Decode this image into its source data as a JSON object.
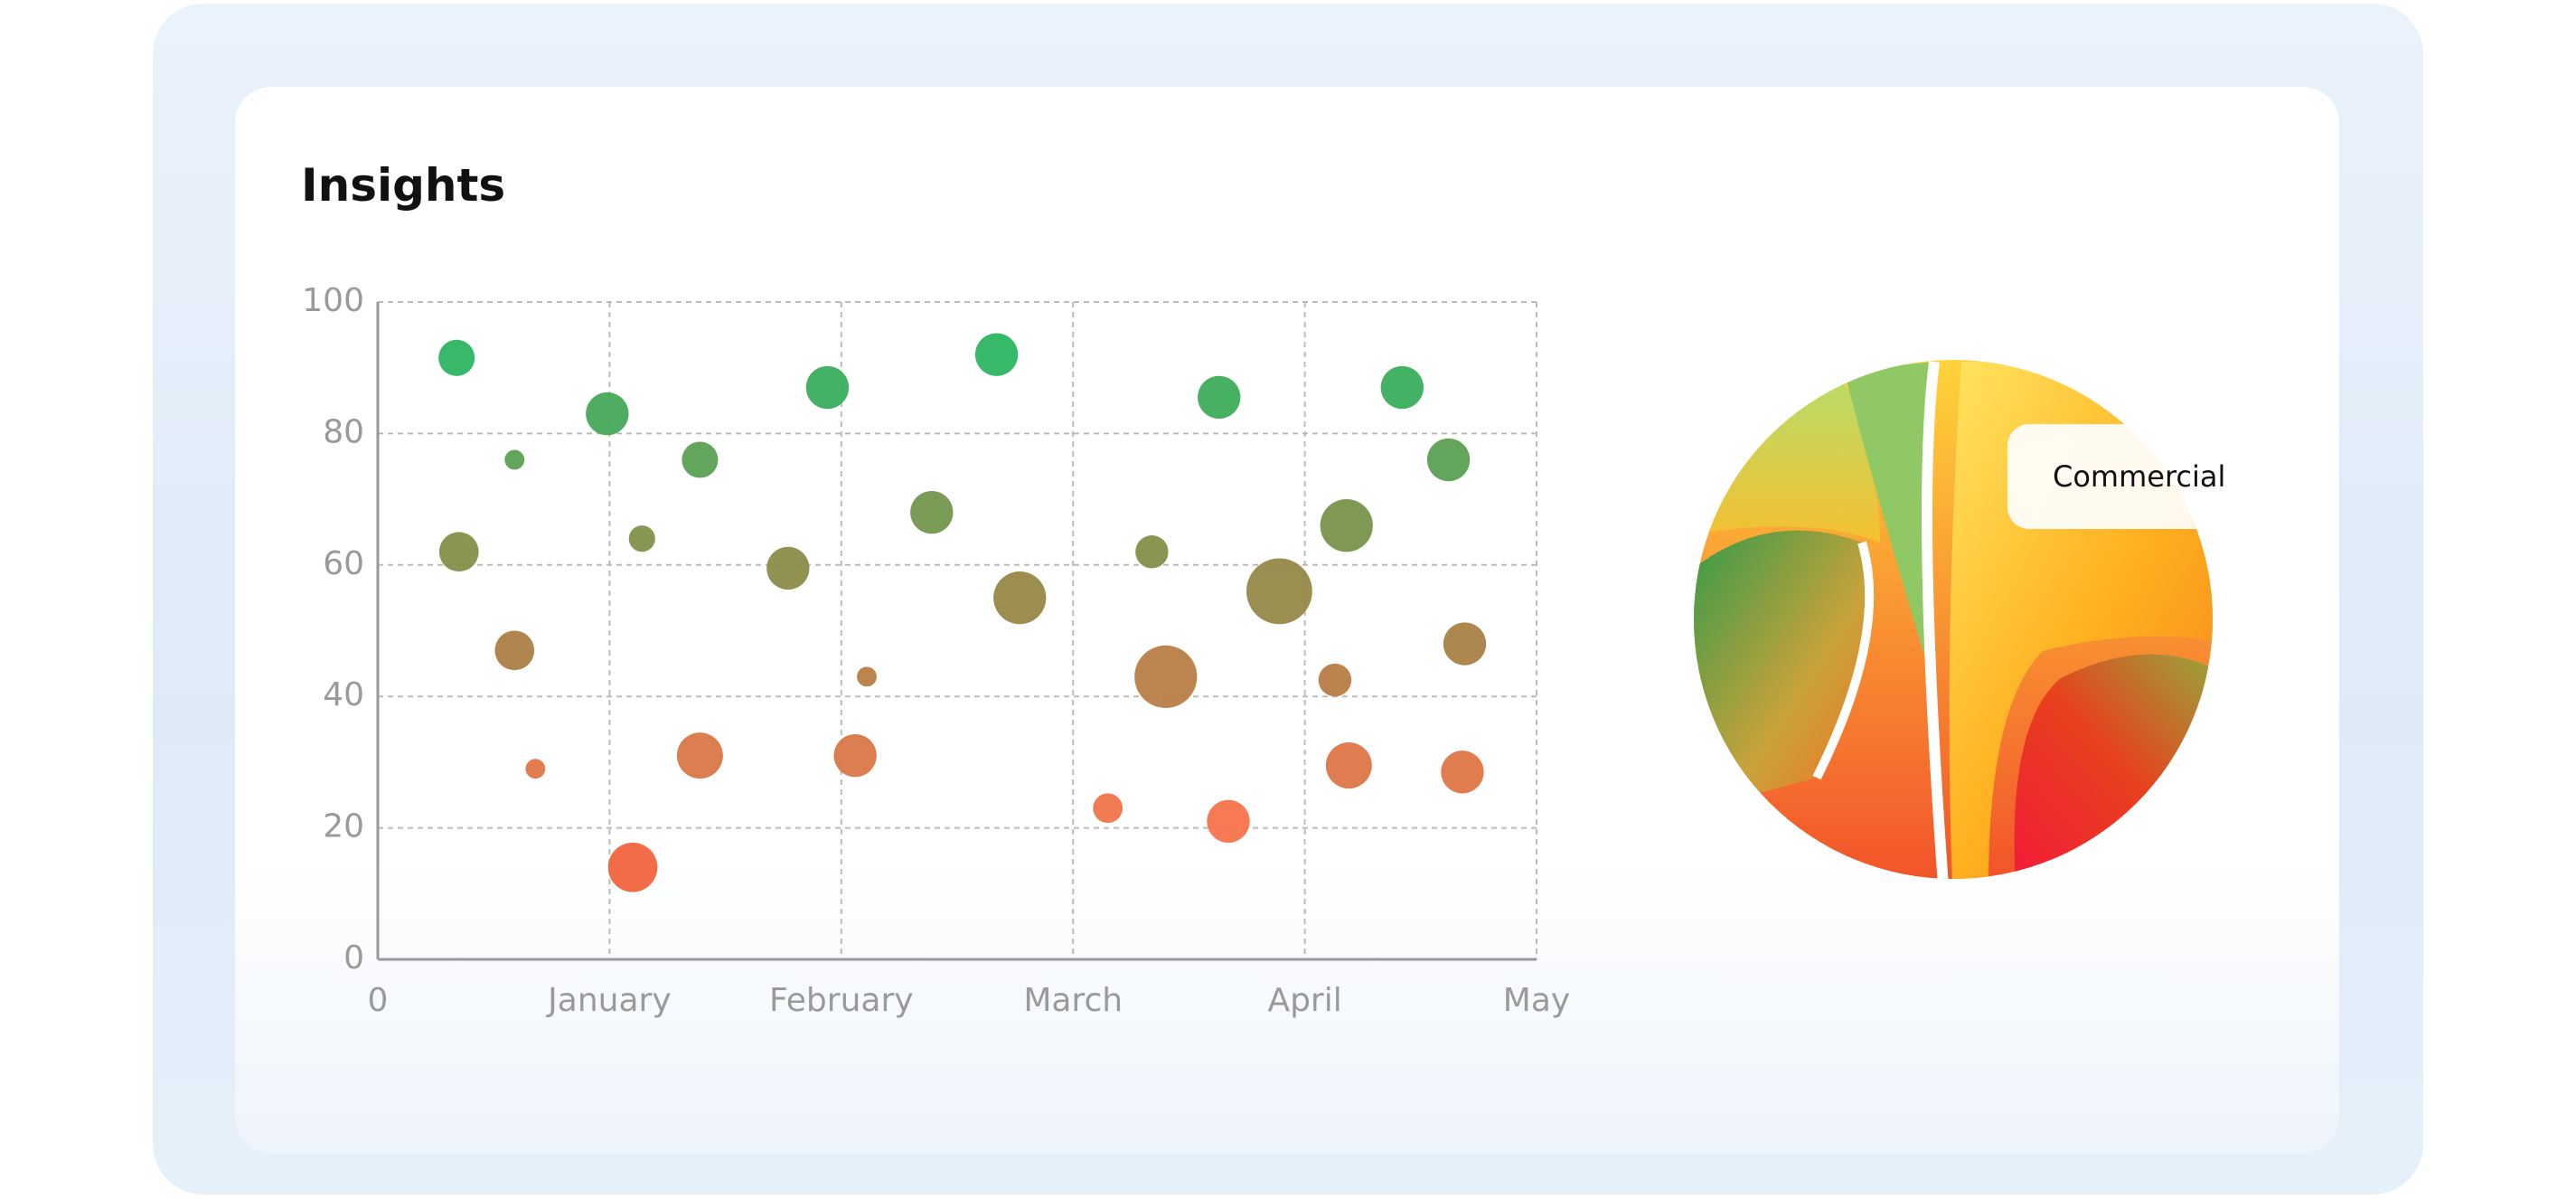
{
  "header": {
    "title": "Insights"
  },
  "chart_data": {
    "type": "bubble",
    "x": [
      0.34,
      0.59,
      0.35,
      0.59,
      0.68,
      0.99,
      1.14,
      1.1,
      1.39,
      1.39,
      1.77,
      1.94,
      2.11,
      2.06,
      2.39,
      2.67,
      2.77,
      3.15,
      3.34,
      3.4,
      3.63,
      3.67,
      3.89,
      4.13,
      4.18,
      4.19,
      4.42,
      4.62,
      4.69,
      4.68
    ],
    "values": [
      91.5,
      76,
      62,
      47,
      29,
      83,
      64,
      14,
      76,
      31,
      59.5,
      87,
      43,
      31,
      68,
      92,
      55,
      23,
      62,
      43,
      85.5,
      21,
      56,
      42.5,
      66,
      29.5,
      87,
      76,
      48,
      28.5
    ],
    "sizes": [
      11,
      6,
      12,
      12,
      6,
      13,
      8,
      15,
      11,
      14,
      13,
      13,
      6,
      13,
      13,
      13,
      16,
      9,
      10,
      19,
      13,
      13,
      20,
      10,
      16,
      14,
      13,
      13,
      13,
      13
    ],
    "color_scale": [
      "#e2401f",
      "#f8734a",
      "#c07a44",
      "#8a8c48",
      "#4ea554",
      "#15c06c"
    ],
    "xlim": [
      0,
      5
    ],
    "xticks": [
      0,
      {
        "value": 1,
        "label": "January"
      },
      {
        "value": 2,
        "label": "February"
      },
      {
        "value": 3,
        "label": "March"
      },
      {
        "value": 4,
        "label": "April"
      },
      {
        "value": 5,
        "label": "May"
      }
    ],
    "ylim": [
      0,
      100
    ],
    "yticks": [
      0,
      20,
      40,
      60,
      80,
      100
    ],
    "grid": true
  },
  "illustration": {
    "label": "Commercial"
  }
}
